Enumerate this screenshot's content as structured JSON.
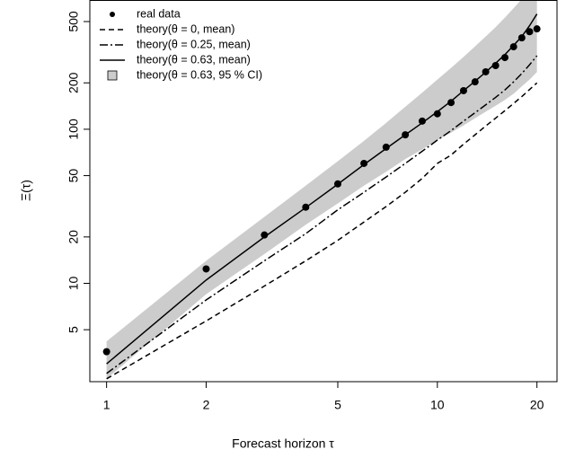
{
  "chart_data": {
    "type": "line",
    "xlabel": "Forecast horizon τ",
    "ylabel": "Ξ(τ)",
    "log_x": true,
    "log_y": true,
    "legend": "top-left",
    "xlim": [
      0.89,
      23
    ],
    "ylim": [
      2.3,
      690
    ],
    "xticks": [
      1,
      2,
      5,
      10,
      20
    ],
    "yticks": [
      5,
      10,
      20,
      50,
      100,
      200,
      500
    ],
    "x": [
      1,
      2,
      3,
      4,
      5,
      6,
      7,
      8,
      9,
      10,
      11,
      12,
      13,
      14,
      15,
      16,
      17,
      18,
      19,
      20
    ],
    "series": [
      {
        "name": "real data",
        "color": "#000000",
        "style": "points",
        "values": [
          3.6,
          12.4,
          20.6,
          31.2,
          44.2,
          60,
          76.5,
          92,
          113,
          126,
          149,
          178,
          203,
          236,
          259,
          292,
          343,
          392,
          430,
          448
        ]
      },
      {
        "name": "theory(θ = 0, mean)",
        "color": "#000000",
        "style": "dashed",
        "values": [
          2.4,
          5.7,
          9.6,
          14,
          19,
          25,
          31.5,
          39,
          48,
          60,
          68,
          80,
          92,
          105,
          118,
          132,
          147,
          163,
          181,
          200
        ]
      },
      {
        "name": "theory(θ = 0.25, mean)",
        "color": "#000000",
        "style": "dashdot",
        "values": [
          2.6,
          7.8,
          14,
          21,
          30,
          39,
          49,
          60,
          72,
          85,
          98,
          113,
          128,
          144,
          161,
          180,
          203,
          230,
          262,
          300
        ]
      },
      {
        "name": "theory(θ = 0.63, mean)",
        "color": "#000000",
        "style": "solid",
        "values": [
          3.0,
          10.5,
          20,
          31,
          44,
          59,
          75,
          92,
          110,
          130,
          152,
          178,
          205,
          235,
          268,
          305,
          350,
          400,
          470,
          560
        ]
      },
      {
        "name": "theory(θ = 0.63, 95 % CI)",
        "color": "#cccccc",
        "style": "band",
        "lower": [
          2.4,
          8.5,
          15.5,
          24,
          33,
          43,
          53,
          64,
          74,
          85,
          95,
          106,
          118,
          130,
          142,
          155,
          170,
          190,
          210,
          235
        ],
        "upper": [
          4.2,
          14,
          27,
          43,
          62,
          84,
          110,
          140,
          173,
          210,
          250,
          295,
          345,
          400,
          460,
          530,
          610,
          700,
          800,
          920
        ]
      }
    ]
  }
}
